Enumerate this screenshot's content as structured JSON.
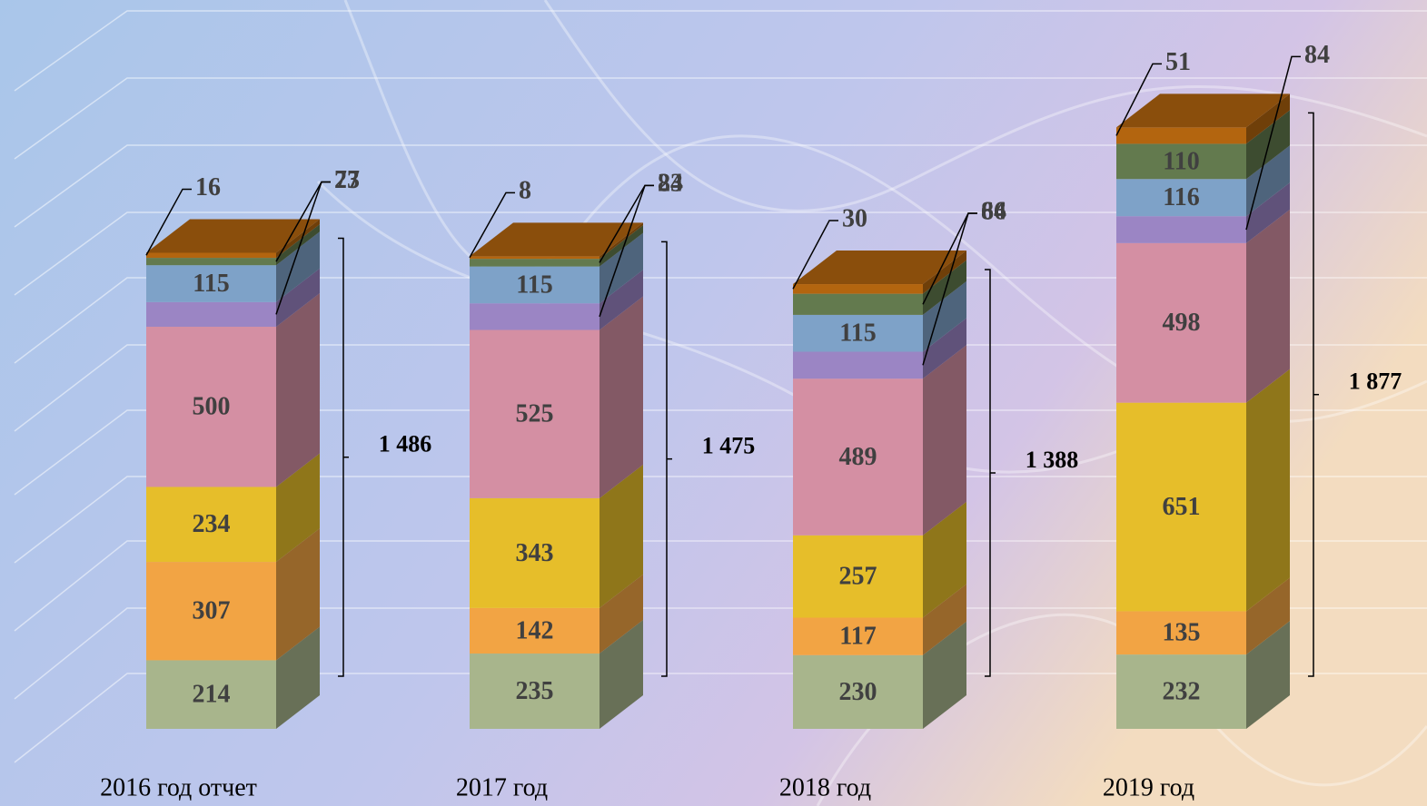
{
  "chart_data": {
    "type": "bar3d_stacked",
    "categories": [
      "2016 год отчет",
      "2017 год",
      "2018 год",
      "2019 год"
    ],
    "series": [
      {
        "color": "#a8b58c",
        "values": [
          214,
          235,
          230,
          232
        ]
      },
      {
        "color": "#f2a444",
        "values": [
          307,
          142,
          117,
          135
        ]
      },
      {
        "color": "#e6be2a",
        "values": [
          234,
          343,
          257,
          651
        ]
      },
      {
        "color": "#d48fa3",
        "values": [
          500,
          525,
          489,
          498
        ]
      },
      {
        "color": "#9b85c4",
        "values": [
          77,
          83,
          84,
          84
        ]
      },
      {
        "color": "#7ea2c8",
        "values": [
          115,
          115,
          115,
          116
        ]
      },
      {
        "color": "#637a4e",
        "values": [
          23,
          24,
          66,
          110
        ]
      },
      {
        "color": "#b3650f",
        "values": [
          16,
          8,
          30,
          51
        ]
      }
    ],
    "totals": {
      "values": [
        1486,
        1475,
        1388,
        1877
      ],
      "value_labels": [
        "1 486",
        "1 475",
        "1 388",
        "1 877"
      ]
    }
  }
}
